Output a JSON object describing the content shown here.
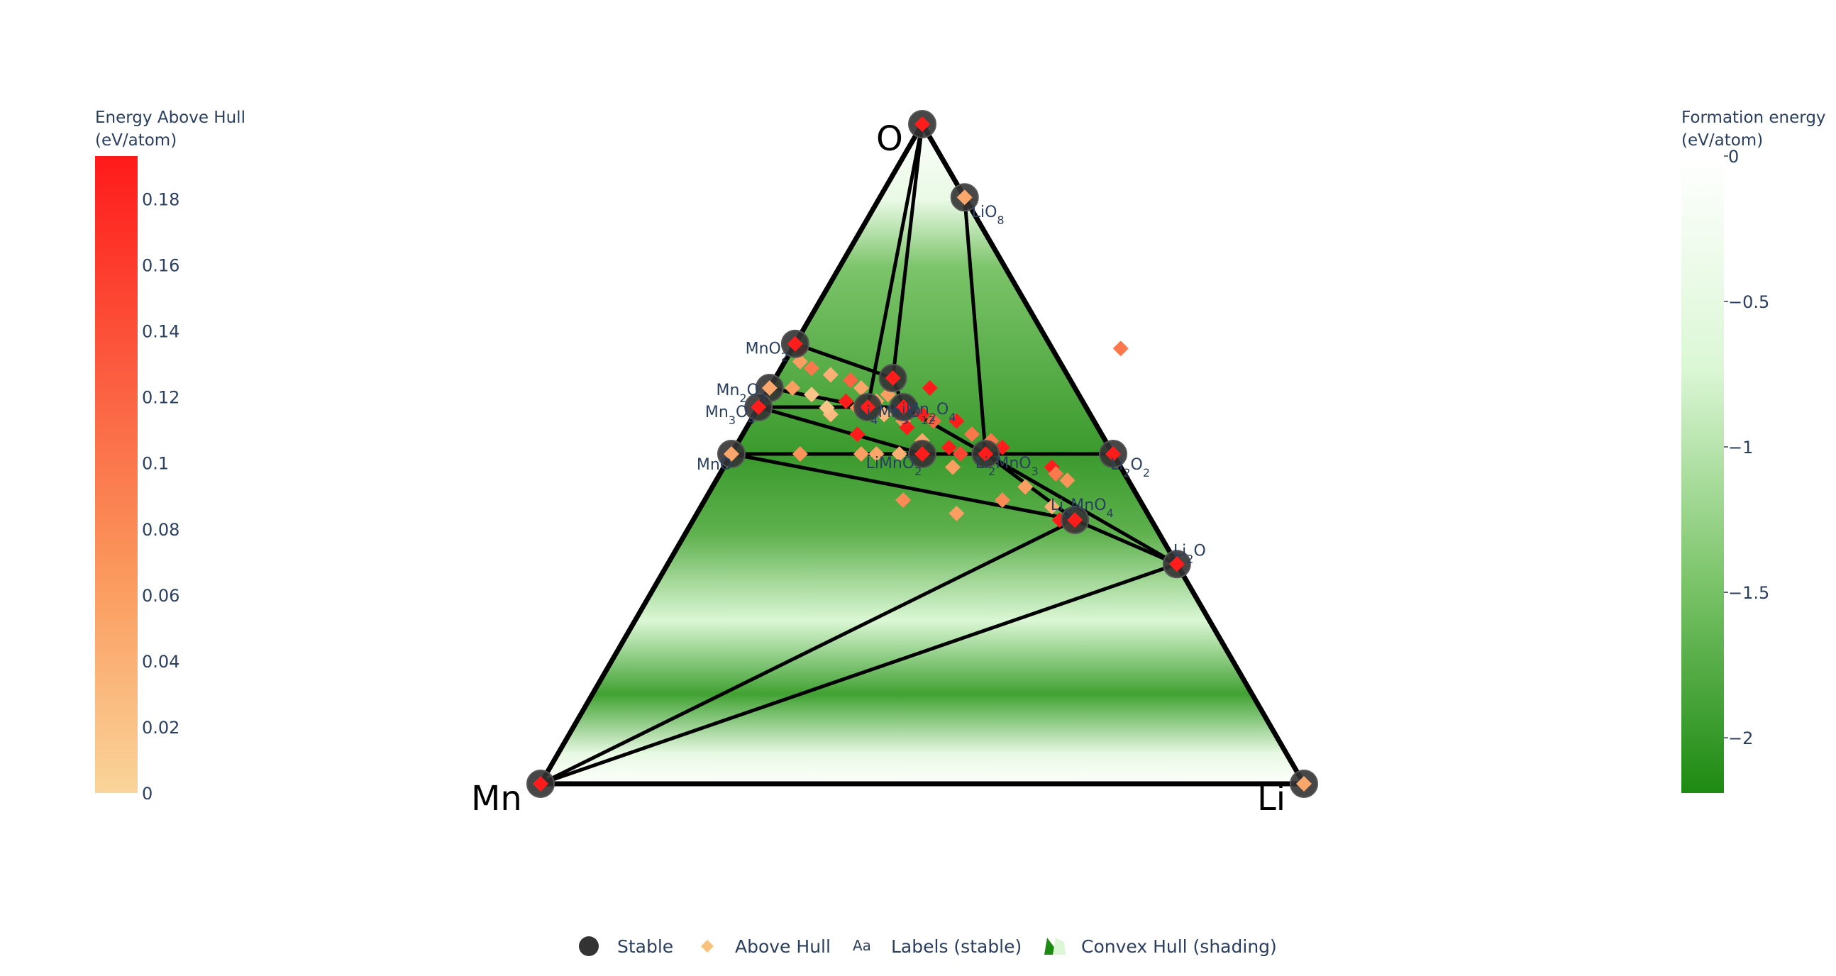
{
  "chart_data": {
    "type": "ternary phase diagram",
    "corners": [
      "O",
      "Mn",
      "Li"
    ],
    "colors": {
      "hull_line": "#000000",
      "stable_marker": "#333333",
      "above_hull_low": "#f9d59a",
      "above_hull_high": "#ff1a1a",
      "formation_light": "#ffffff",
      "formation_dark": "#1d8a12"
    },
    "colorbars": [
      {
        "title_lines": [
          "Energy Above Hull",
          "(eV/atom)"
        ],
        "ticks": [
          "0",
          "0.02",
          "0.04",
          "0.06",
          "0.08",
          "0.1",
          "0.12",
          "0.14",
          "0.16",
          "0.18"
        ],
        "tick_values": [
          0,
          0.02,
          0.04,
          0.06,
          0.08,
          0.1,
          0.12,
          0.14,
          0.16,
          0.18
        ],
        "range": [
          0,
          0.193
        ],
        "colorscale": [
          "#f9d59a",
          "#fb9a5e",
          "#fb5b3e",
          "#ff1a1a"
        ]
      },
      {
        "title_lines": [
          "Formation energy",
          "(eV/atom)"
        ],
        "ticks": [
          "0",
          "−0.5",
          "−1",
          "−1.5",
          "−2"
        ],
        "tick_values": [
          0,
          -0.5,
          -1,
          -1.5,
          -2
        ],
        "range": [
          -2.19,
          0
        ],
        "colorscale": [
          "#ffffff",
          "#dbf7d5",
          "#7cc46a",
          "#1d8a12"
        ]
      }
    ],
    "stable_phases": [
      {
        "name": "O",
        "O": 1.0,
        "Li": 0.0,
        "e_above_hull": 0.19,
        "label": false
      },
      {
        "name": "Mn",
        "O": 0.0,
        "Li": 0.0,
        "e_above_hull": 0.19,
        "label": false
      },
      {
        "name": "Li",
        "O": 0.0,
        "Li": 1.0,
        "e_above_hull": 0.05,
        "label": false
      },
      {
        "name": "LiO8",
        "O": 0.889,
        "Li": 0.111,
        "e_above_hull": 0.05,
        "label": true,
        "html": "Li<tspan baseline-shift='sub' font-size='16'>O8</tspan>",
        "text": "LiO8",
        "anchor": "start"
      },
      {
        "name": "MnO2",
        "O": 0.667,
        "Li": 0.0,
        "e_above_hull": 0.19,
        "label": true,
        "text": "MnO2"
      },
      {
        "name": "Mn2O3",
        "O": 0.6,
        "Li": 0.0,
        "e_above_hull": 0.05,
        "label": true,
        "text": "Mn2O3"
      },
      {
        "name": "Mn3O4",
        "O": 0.571,
        "Li": 0.0,
        "e_above_hull": 0.19,
        "label": true,
        "text": "Mn3O4"
      },
      {
        "name": "MnO",
        "O": 0.5,
        "Li": 0.0,
        "e_above_hull": 0.05,
        "label": true,
        "text": "MnO"
      },
      {
        "name": "LiMn2O4",
        "O": 0.571,
        "Li": 0.143,
        "e_above_hull": 0.19,
        "label": true,
        "text": "LiMn2O4"
      },
      {
        "name": "Li2Mn3O8",
        "O": 0.615,
        "Li": 0.154,
        "e_above_hull": 0.19,
        "label": false
      },
      {
        "name": "Li4Mn5O12",
        "O": 0.571,
        "Li": 0.19,
        "e_above_hull": 0.19,
        "label": true,
        "text": "Li4Mn5O12"
      },
      {
        "name": "LiMnO2",
        "O": 0.5,
        "Li": 0.25,
        "e_above_hull": 0.19,
        "label": true,
        "text": "LiMnO2"
      },
      {
        "name": "Li2MnO3",
        "O": 0.5,
        "Li": 0.333,
        "e_above_hull": 0.19,
        "label": true,
        "text": "Li2MnO3"
      },
      {
        "name": "Li2O2",
        "O": 0.5,
        "Li": 0.5,
        "e_above_hull": 0.19,
        "label": true,
        "text": "Li2O2"
      },
      {
        "name": "Li5MnO4",
        "O": 0.4,
        "Li": 0.5,
        "e_above_hull": 0.19,
        "label": true,
        "text": "Li5MnO4"
      },
      {
        "name": "Li2O",
        "O": 0.333,
        "Li": 0.667,
        "e_above_hull": 0.19,
        "label": true,
        "text": "Li2O"
      }
    ],
    "above_hull_points": [
      [
        0.658,
        0.012,
        0.19
      ],
      [
        0.64,
        0.02,
        0.06
      ],
      [
        0.63,
        0.04,
        0.1
      ],
      [
        0.62,
        0.07,
        0.04
      ],
      [
        0.612,
        0.1,
        0.12
      ],
      [
        0.6,
        0.12,
        0.05
      ],
      [
        0.58,
        0.11,
        0.19
      ],
      [
        0.59,
        0.16,
        0.06
      ],
      [
        0.6,
        0.21,
        0.19
      ],
      [
        0.57,
        0.13,
        0.08
      ],
      [
        0.56,
        0.17,
        0.03
      ],
      [
        0.55,
        0.2,
        0.07
      ],
      [
        0.55,
        0.24,
        0.12
      ],
      [
        0.54,
        0.21,
        0.19
      ],
      [
        0.52,
        0.24,
        0.05
      ],
      [
        0.51,
        0.28,
        0.19
      ],
      [
        0.5,
        0.3,
        0.15
      ],
      [
        0.66,
        0.43,
        0.1
      ],
      [
        0.48,
        0.43,
        0.19
      ],
      [
        0.47,
        0.44,
        0.1
      ],
      [
        0.46,
        0.46,
        0.07
      ],
      [
        0.45,
        0.41,
        0.06
      ],
      [
        0.43,
        0.39,
        0.08
      ],
      [
        0.42,
        0.46,
        0.04
      ],
      [
        0.4,
        0.48,
        0.19
      ],
      [
        0.39,
        0.5,
        0.09
      ],
      [
        0.41,
        0.34,
        0.06
      ],
      [
        0.43,
        0.26,
        0.08
      ],
      [
        0.5,
        0.09,
        0.07
      ],
      [
        0.5,
        0.17,
        0.06
      ],
      [
        0.5,
        0.19,
        0.05
      ],
      [
        0.5,
        0.22,
        0.04
      ],
      [
        0.48,
        0.3,
        0.06
      ],
      [
        0.53,
        0.15,
        0.19
      ],
      [
        0.56,
        0.1,
        0.03
      ],
      [
        0.57,
        0.09,
        0.02
      ],
      [
        0.58,
        0.15,
        0.05
      ],
      [
        0.55,
        0.27,
        0.19
      ],
      [
        0.53,
        0.3,
        0.1
      ],
      [
        0.6,
        0.03,
        0.06
      ],
      [
        0.59,
        0.06,
        0.02
      ],
      [
        0.56,
        0.22,
        0.19
      ],
      [
        0.52,
        0.33,
        0.1
      ],
      [
        0.51,
        0.35,
        0.19
      ]
    ]
  },
  "legend": {
    "items": [
      {
        "symbol": "circle",
        "label": "Stable"
      },
      {
        "symbol": "diamond",
        "label": "Above Hull"
      },
      {
        "symbol": "text",
        "glyph": "Aa",
        "label": "Labels (stable)"
      },
      {
        "symbol": "shading",
        "label": "Convex Hull (shading)"
      }
    ]
  }
}
